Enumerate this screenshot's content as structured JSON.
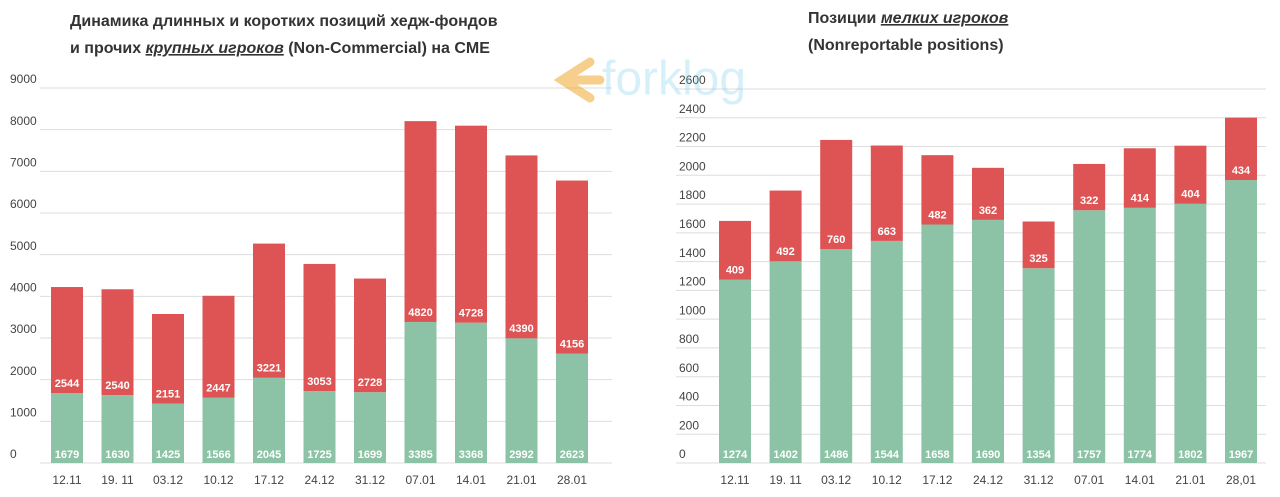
{
  "watermark": "forklog",
  "chart_data": [
    {
      "type": "stacked-bar",
      "title_lines": [
        [
          "Динамика длинных и коротких позиций хедж-фондов"
        ],
        [
          "и прочих ",
          "крупных игроков",
          " (Non-Commercial) на CME"
        ]
      ],
      "categories": [
        "12.11",
        "19. 11",
        "03.12",
        "10.12",
        "17.12",
        "24.12",
        "31.12",
        "07.01",
        "14.01",
        "21.01",
        "28.01"
      ],
      "series": [
        {
          "color": "#8cc3a6",
          "values": [
            1679,
            1630,
            1425,
            1566,
            2045,
            1725,
            1699,
            3385,
            3368,
            2992,
            2623
          ]
        },
        {
          "color": "#de5454",
          "values": [
            2544,
            2540,
            2151,
            2447,
            3221,
            3053,
            2728,
            4820,
            4728,
            4390,
            4156
          ]
        }
      ],
      "ylim": [
        0,
        9000
      ],
      "yticks": [
        0,
        1000,
        2000,
        3000,
        4000,
        5000,
        6000,
        7000,
        8000,
        9000
      ],
      "grid": true
    },
    {
      "type": "stacked-bar",
      "title_lines": [
        [
          "Позиции ",
          "мелких игроков"
        ],
        [
          "(Nonreportable positions)"
        ]
      ],
      "categories": [
        "12.11",
        "19. 11",
        "03.12",
        "10.12",
        "17.12",
        "24.12",
        "31.12",
        "07.01",
        "14.01",
        "21.01",
        "28,01"
      ],
      "series": [
        {
          "color": "#8cc3a6",
          "values": [
            1274,
            1402,
            1486,
            1544,
            1658,
            1690,
            1354,
            1757,
            1774,
            1802,
            1967
          ]
        },
        {
          "color": "#de5454",
          "values": [
            409,
            492,
            760,
            663,
            482,
            362,
            325,
            322,
            414,
            404,
            434
          ]
        }
      ],
      "ylim": [
        0,
        2600
      ],
      "yticks": [
        0,
        200,
        400,
        600,
        800,
        1000,
        1200,
        1400,
        1600,
        1800,
        2000,
        2200,
        2400,
        2600
      ],
      "grid": true
    }
  ]
}
